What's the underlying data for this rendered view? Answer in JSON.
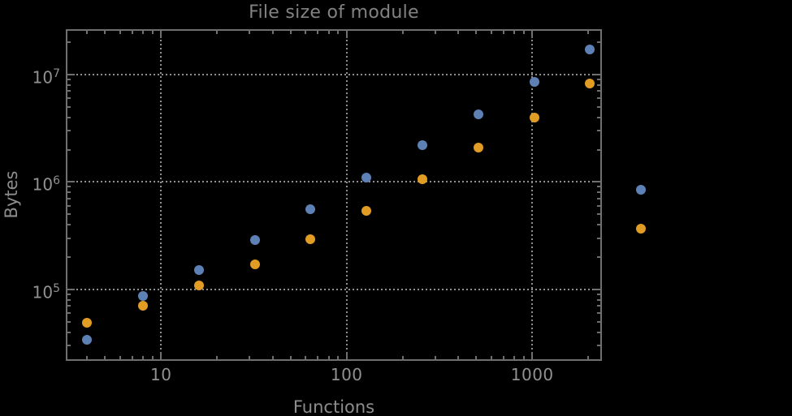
{
  "chart_data": {
    "type": "scatter",
    "title": "File size of module",
    "xlabel": "Functions",
    "ylabel": "Bytes",
    "xscale": "log",
    "yscale": "log",
    "xlim": [
      3.1,
      2350
    ],
    "ylim": [
      22000,
      26000000
    ],
    "grid": "dotted major gridlines",
    "legend": "none",
    "background": "#000000",
    "frame_color": "#6f6f6f",
    "grid_color": "#8f8f8f",
    "text_color": "#919191",
    "x_major_ticks": {
      "values": [
        10,
        100,
        1000
      ],
      "labels": [
        "10",
        "100",
        "1000"
      ]
    },
    "y_major_ticks": {
      "values": [
        100000,
        1000000,
        10000000
      ],
      "label_base": "10",
      "label_exponents": [
        5,
        6,
        7
      ]
    },
    "series": [
      {
        "name": "series-1-blue",
        "color": "#5E81B5",
        "points": [
          [
            4,
            34000
          ],
          [
            8,
            87000
          ],
          [
            16,
            152000
          ],
          [
            32,
            288000
          ],
          [
            64,
            560000
          ],
          [
            128,
            1100000
          ],
          [
            256,
            2200000
          ],
          [
            512,
            4300000
          ],
          [
            1024,
            8600000
          ],
          [
            2048,
            17100000
          ],
          [
            3860,
            840000
          ]
        ]
      },
      {
        "name": "series-2-orange",
        "color": "#E19C24",
        "points": [
          [
            4,
            49000
          ],
          [
            8,
            71000
          ],
          [
            16,
            108000
          ],
          [
            32,
            171000
          ],
          [
            64,
            291000
          ],
          [
            128,
            540000
          ],
          [
            256,
            1070000
          ],
          [
            512,
            2100000
          ],
          [
            1024,
            4000000
          ],
          [
            2048,
            8200000
          ],
          [
            3860,
            370000
          ]
        ]
      }
    ]
  }
}
